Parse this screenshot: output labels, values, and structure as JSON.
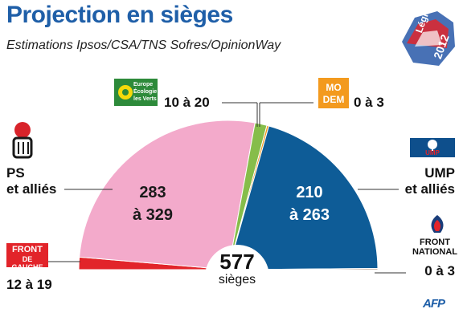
{
  "chart_data": {
    "type": "pie",
    "title": "Projection en sièges",
    "subtitle": "Estimations Ipsos/CSA/TNS Sofres/OpinionWay",
    "total": {
      "value": "577",
      "label": "sièges"
    },
    "series": [
      {
        "name": "FRONT DE GAUCHE",
        "label": "12 à 19",
        "value": 15.5,
        "color": "#e2242a"
      },
      {
        "name": "PS et alliés",
        "label": "283 à 329",
        "value": 306,
        "color": "#f3aacb"
      },
      {
        "name": "Europe Écologie les Verts",
        "label": "10 à 20",
        "value": 15,
        "color": "#86bd4a"
      },
      {
        "name": "MODEM",
        "label": "0 à 3",
        "value": 2.5,
        "color": "#f39a1e"
      },
      {
        "name": "UMP et alliés",
        "label": "210 à 263",
        "value": 236.5,
        "color": "#0e5c97"
      },
      {
        "name": "FRONT NATIONAL",
        "label": "0 à 3",
        "value": 1.5,
        "color": "#7a4a2a"
      }
    ]
  },
  "labels": {
    "ps_line1": "PS",
    "ps_line2": "et alliés",
    "ump_line1": "UMP",
    "ump_line2": "et alliés",
    "fn_line1": "FRONT",
    "fn_line2": "NATIONAL",
    "fg_value": "12 à 19",
    "eelv_value": "10 à 20",
    "modem_value": "0 à 3",
    "fn_value": "0 à 3",
    "ps_val_1": "283",
    "ps_val_2": "à 329",
    "ump_val_1": "210",
    "ump_val_2": "à 263"
  },
  "logos": {
    "fg_line1": "FRONT",
    "fg_line2": "DE GAUCHE",
    "eelv_line1": "Europe",
    "eelv_line2": "Écologie",
    "eelv_line3": "les Verts",
    "modem_line1": "MO",
    "modem_line2": "DEM",
    "ump_text": "UMP",
    "legislatives_word": "Législatives",
    "legislatives_year": "2012",
    "afp": "AFP"
  },
  "colors": {
    "title": "#1f5fa8",
    "ps_logo": "#d8232a",
    "eelv_logo": "#2d8a3a",
    "modem_logo": "#f39a1e",
    "ump_logo": "#0e4f8c",
    "fn_logo": "#1a3d7a"
  }
}
